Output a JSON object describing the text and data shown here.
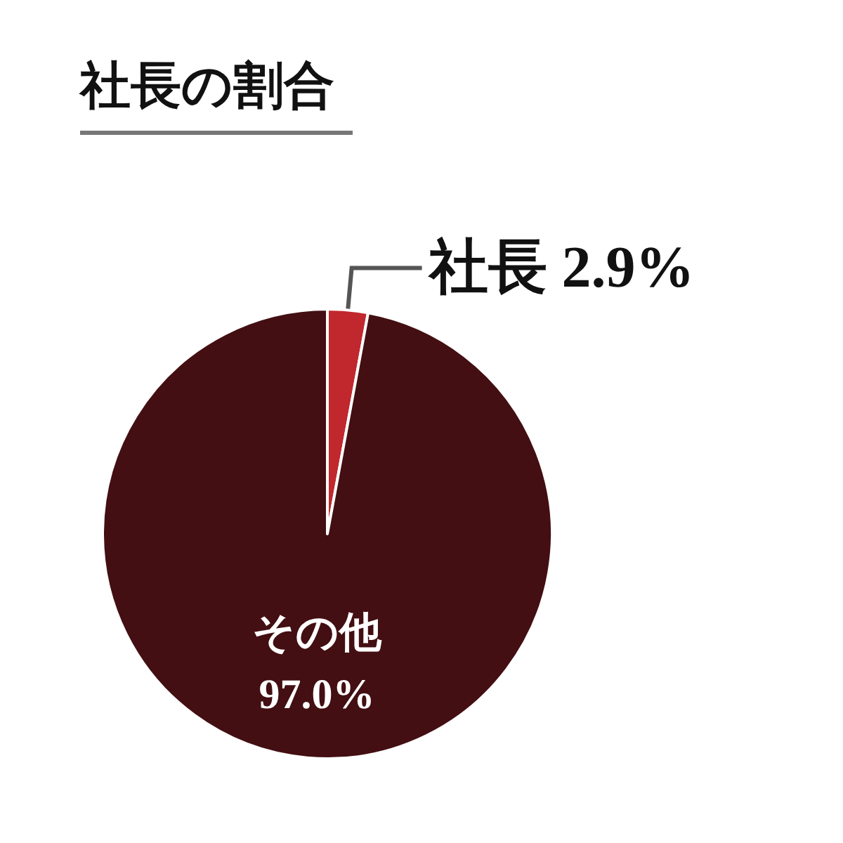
{
  "chart_data": {
    "type": "pie",
    "title": "社長の割合",
    "categories": [
      "社長",
      "その他"
    ],
    "values": [
      2.9,
      97.0
    ],
    "colors": [
      "#c0282e",
      "#430f12"
    ],
    "value_labels": [
      "2.9%",
      "97.0%"
    ]
  }
}
